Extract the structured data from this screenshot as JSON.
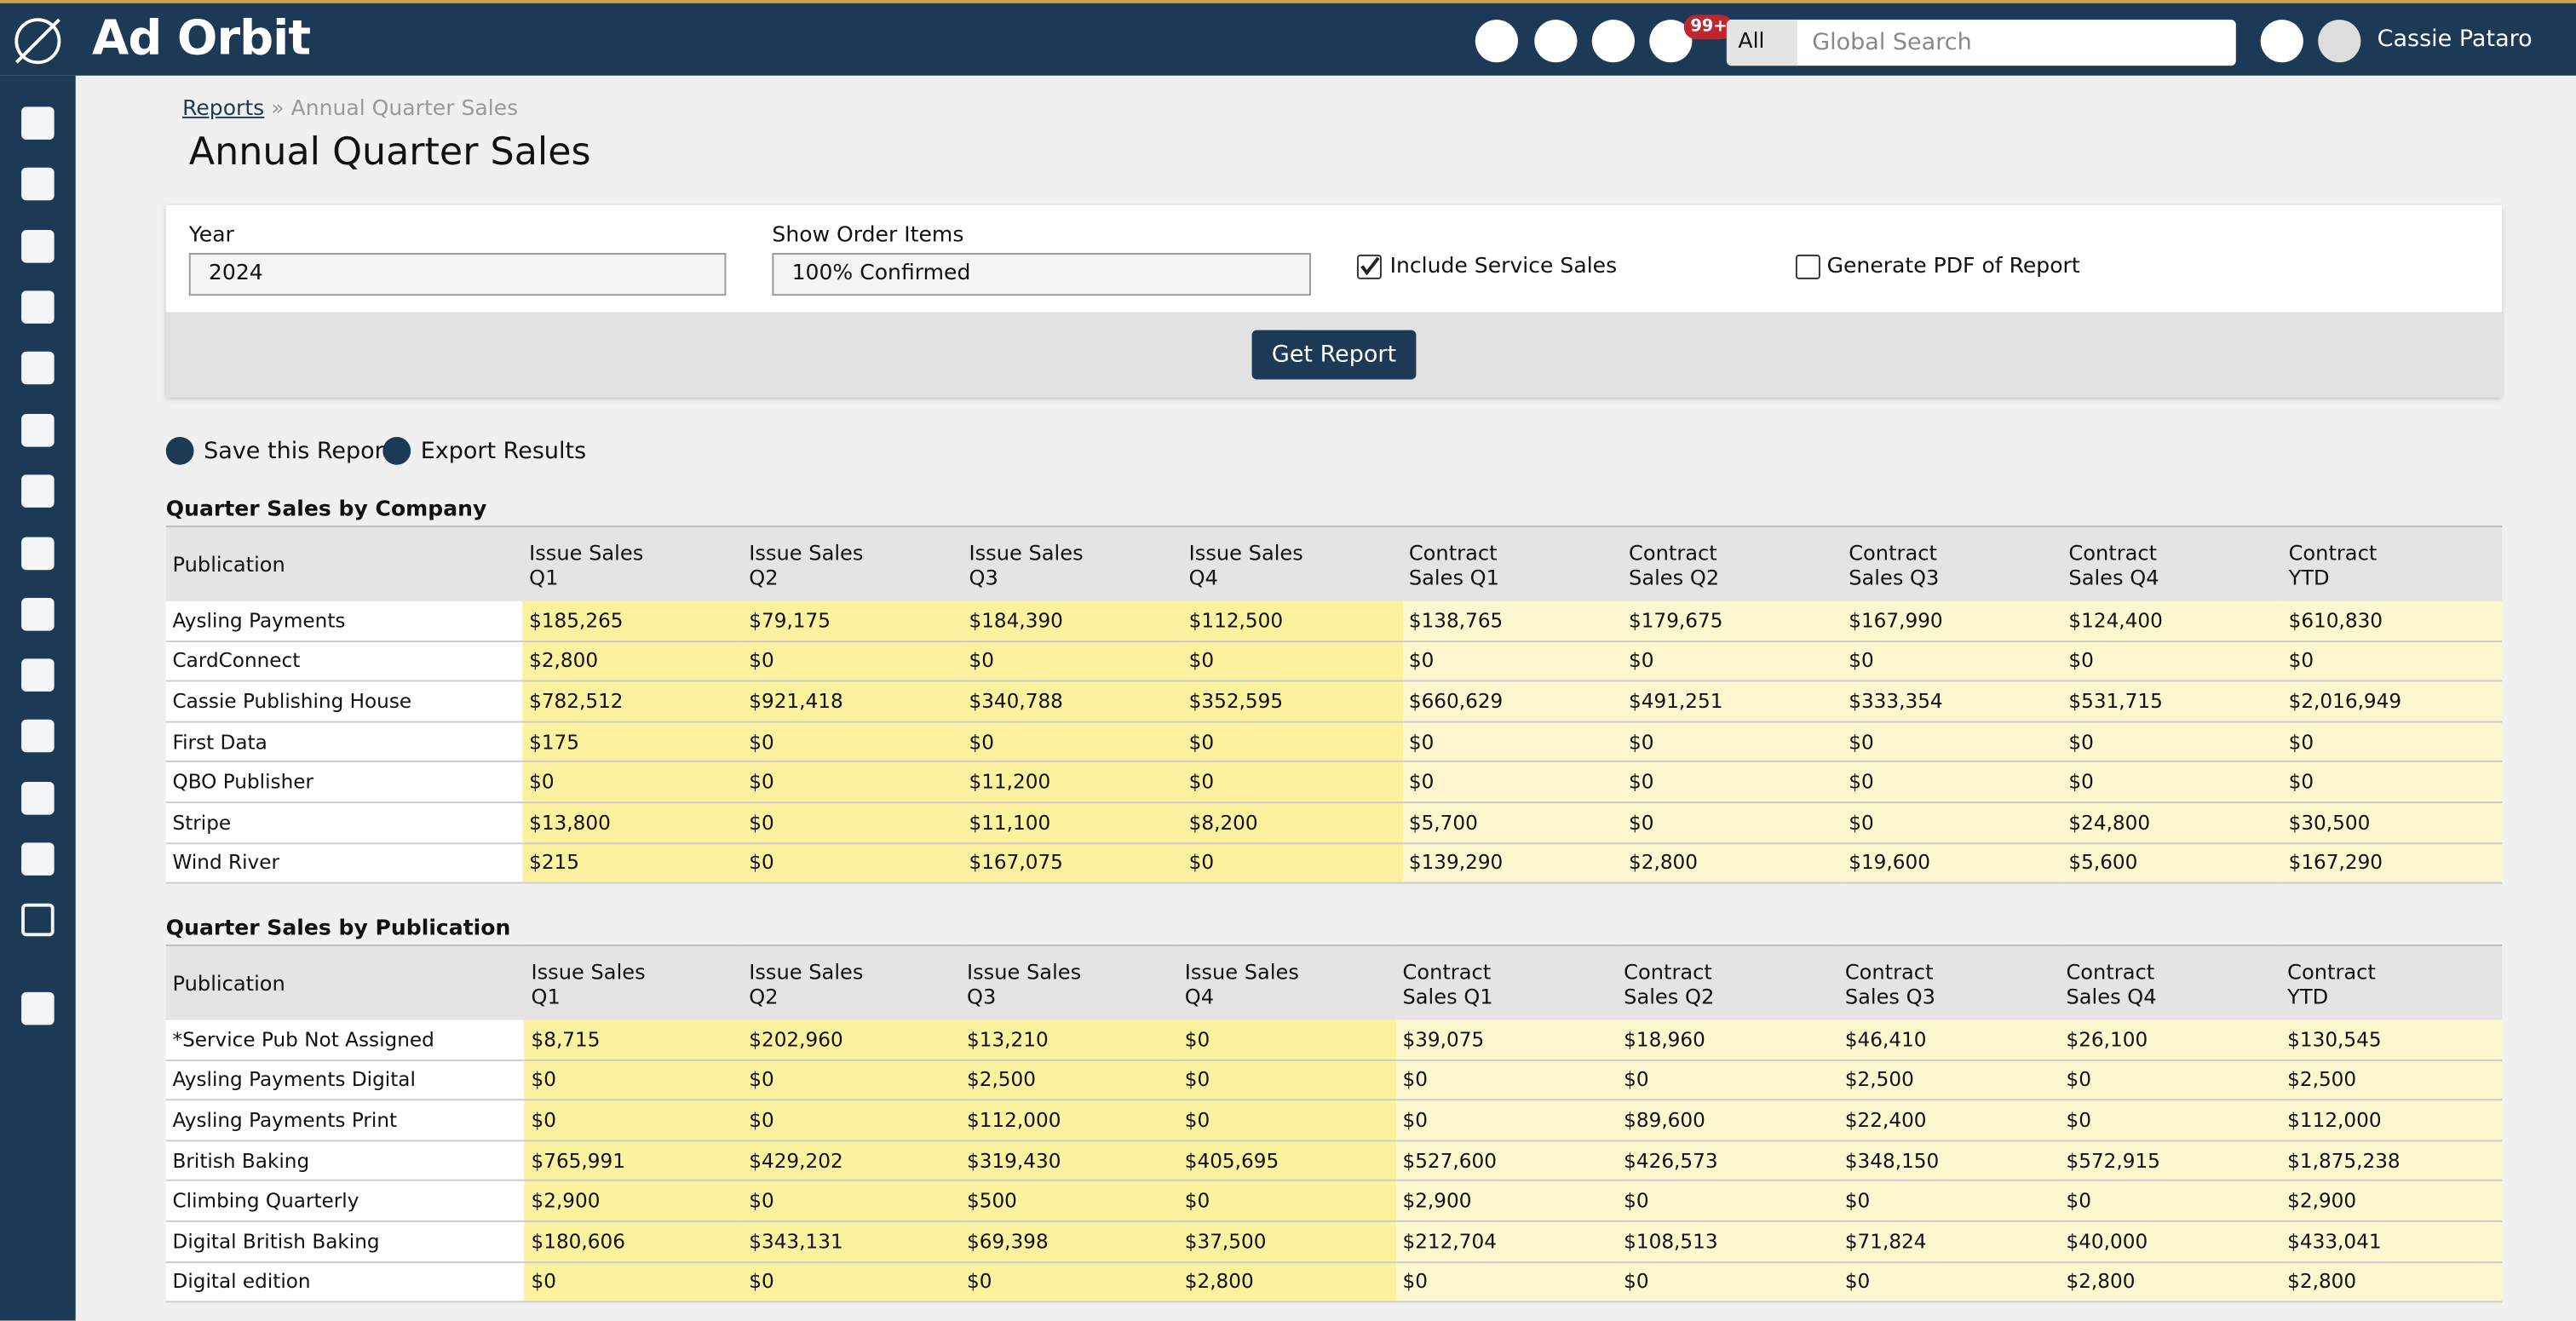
{
  "header": {
    "logo": "Ad Orbit",
    "badge": "99+",
    "search_scope": "All",
    "search_placeholder": "Global Search",
    "user": "Cassie Pataro"
  },
  "breadcrumb": {
    "link": "Reports",
    "current": "» Annual Quarter Sales"
  },
  "title": "Annual Quarter Sales",
  "form": {
    "year_label": "Year",
    "year_value": "2024",
    "items_label": "Show Order Items",
    "items_value": "100% Confirmed",
    "service_label": "Include Service Sales",
    "pdf_label": "Generate PDF of Report",
    "submit": "Get Report"
  },
  "actions": [
    "Save this Report",
    "Export Results"
  ],
  "tables": [
    {
      "title": "Quarter Sales by Company",
      "columns": [
        "Publication",
        "Issue Sales Q1",
        "Issue Sales Q2",
        "Issue Sales Q3",
        "Issue Sales Q4",
        "Contract Sales Q1",
        "Contract Sales Q2",
        "Contract Sales Q3",
        "Contract Sales Q4",
        "Contract YTD"
      ],
      "rows": [
        [
          "Aysling Payments",
          "$185,265",
          "$79,175",
          "$184,390",
          "$112,500",
          "$138,765",
          "$179,675",
          "$167,990",
          "$124,400",
          "$610,830"
        ],
        [
          "CardConnect",
          "$2,800",
          "$0",
          "$0",
          "$0",
          "$0",
          "$0",
          "$0",
          "$0",
          "$0"
        ],
        [
          "Cassie Publishing House",
          "$782,512",
          "$921,418",
          "$340,788",
          "$352,595",
          "$660,629",
          "$491,251",
          "$333,354",
          "$531,715",
          "$2,016,949"
        ],
        [
          "First Data",
          "$175",
          "$0",
          "$0",
          "$0",
          "$0",
          "$0",
          "$0",
          "$0",
          "$0"
        ],
        [
          "QBO Publisher",
          "$0",
          "$0",
          "$11,200",
          "$0",
          "$0",
          "$0",
          "$0",
          "$0",
          "$0"
        ],
        [
          "Stripe",
          "$13,800",
          "$0",
          "$11,100",
          "$8,200",
          "$5,700",
          "$0",
          "$0",
          "$24,800",
          "$30,500"
        ],
        [
          "Wind River",
          "$215",
          "$0",
          "$167,075",
          "$0",
          "$139,290",
          "$2,800",
          "$19,600",
          "$5,600",
          "$167,290"
        ]
      ]
    },
    {
      "title": "Quarter Sales by Publication",
      "columns": [
        "Publication",
        "Issue Sales Q1",
        "Issue Sales Q2",
        "Issue Sales Q3",
        "Issue Sales Q4",
        "Contract Sales Q1",
        "Contract Sales Q2",
        "Contract Sales Q3",
        "Contract Sales Q4",
        "Contract YTD"
      ],
      "rows": [
        [
          "*Service Pub Not Assigned",
          "$8,715",
          "$202,960",
          "$13,210",
          "$0",
          "$39,075",
          "$18,960",
          "$46,410",
          "$26,100",
          "$130,545"
        ],
        [
          "Aysling Payments Digital",
          "$0",
          "$0",
          "$2,500",
          "$0",
          "$0",
          "$0",
          "$2,500",
          "$0",
          "$2,500"
        ],
        [
          "Aysling Payments Print",
          "$0",
          "$0",
          "$112,000",
          "$0",
          "$0",
          "$89,600",
          "$22,400",
          "$0",
          "$112,000"
        ],
        [
          "British Baking",
          "$765,991",
          "$429,202",
          "$319,430",
          "$405,695",
          "$527,600",
          "$426,573",
          "$348,150",
          "$572,915",
          "$1,875,238"
        ],
        [
          "Climbing Quarterly",
          "$2,900",
          "$0",
          "$500",
          "$0",
          "$2,900",
          "$0",
          "$0",
          "$0",
          "$2,900"
        ],
        [
          "Digital British Baking",
          "$180,606",
          "$343,131",
          "$69,398",
          "$37,500",
          "$212,704",
          "$108,513",
          "$71,824",
          "$40,000",
          "$433,041"
        ],
        [
          "Digital edition",
          "$0",
          "$0",
          "$0",
          "$2,800",
          "$0",
          "$0",
          "$0",
          "$2,800",
          "$2,800"
        ]
      ]
    }
  ]
}
